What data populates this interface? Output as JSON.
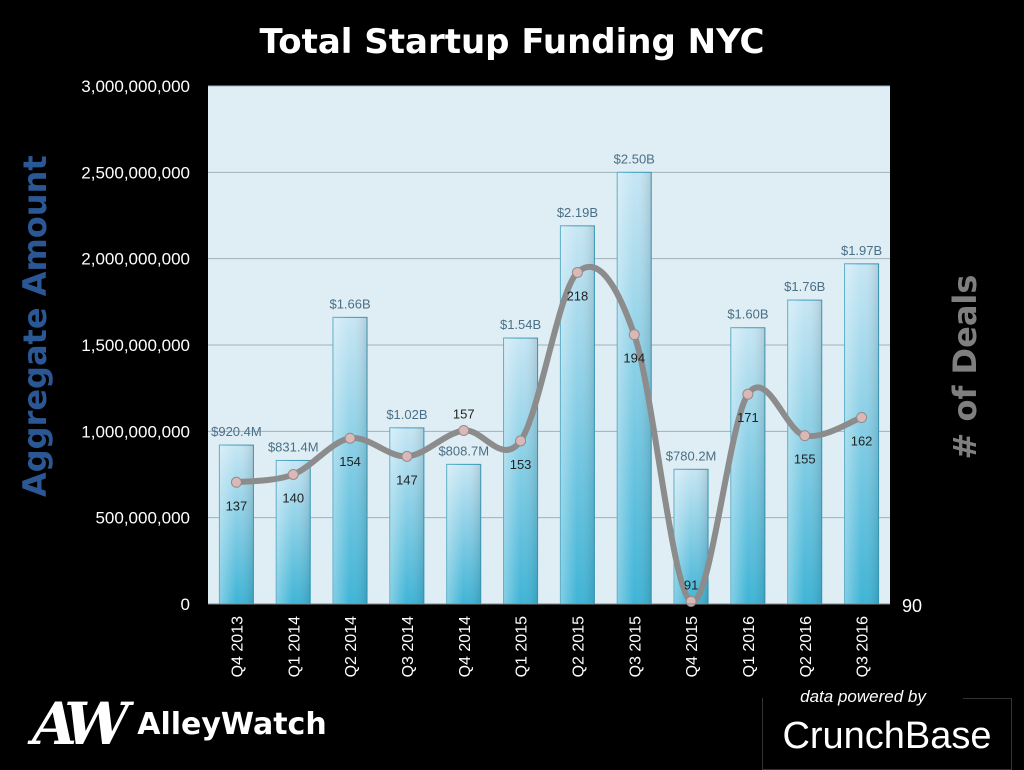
{
  "chart_data": {
    "type": "bar",
    "title": "Total Startup Funding NYC",
    "ylabel": "Aggregate Amount",
    "y2label": "# of Deals",
    "ylim": [
      0,
      3000000000
    ],
    "yticks": [
      "0",
      "500,000,000",
      "1,000,000,000",
      "1,500,000,000",
      "2,000,000,000",
      "2,500,000,000",
      "3,000,000,000"
    ],
    "y2ticks": [
      "90"
    ],
    "categories": [
      "Q4 2013",
      "Q1 2014",
      "Q2 2014",
      "Q3 2014",
      "Q4 2014",
      "Q1 2015",
      "Q2 2015",
      "Q3 2015",
      "Q4 2015",
      "Q1 2016",
      "Q2 2016",
      "Q3 2016"
    ],
    "series": [
      {
        "name": "Aggregate Amount",
        "type": "bar",
        "values": [
          920400000,
          831400000,
          1660000000,
          1020000000,
          808700000,
          1540000000,
          2190000000,
          2500000000,
          780200000,
          1600000000,
          1760000000,
          1970000000
        ],
        "labels": [
          "$920.4M",
          "$831.4M",
          "$1.66B",
          "$1.02B",
          "$808.7M",
          "$1.54B",
          "$2.19B",
          "$2.50B",
          "$780.2M",
          "$1.60B",
          "$1.76B",
          "$1.97B"
        ]
      },
      {
        "name": "# of Deals",
        "type": "line",
        "values": [
          137,
          140,
          154,
          147,
          157,
          153,
          218,
          194,
          91,
          171,
          155,
          162
        ],
        "labels": [
          "137",
          "140",
          "154",
          "147",
          "157",
          "153",
          "218",
          "194",
          "91",
          "171",
          "155",
          "162"
        ]
      }
    ],
    "colors": {
      "bar": "#5bc3e3",
      "line": "#8c8c8c",
      "plot_bg": "#dfeef5"
    }
  },
  "branding": {
    "logo_mark": "AW",
    "logo_name": "AlleyWatch",
    "powered_by": "data powered by",
    "crunchbase": "CrunchBase"
  }
}
